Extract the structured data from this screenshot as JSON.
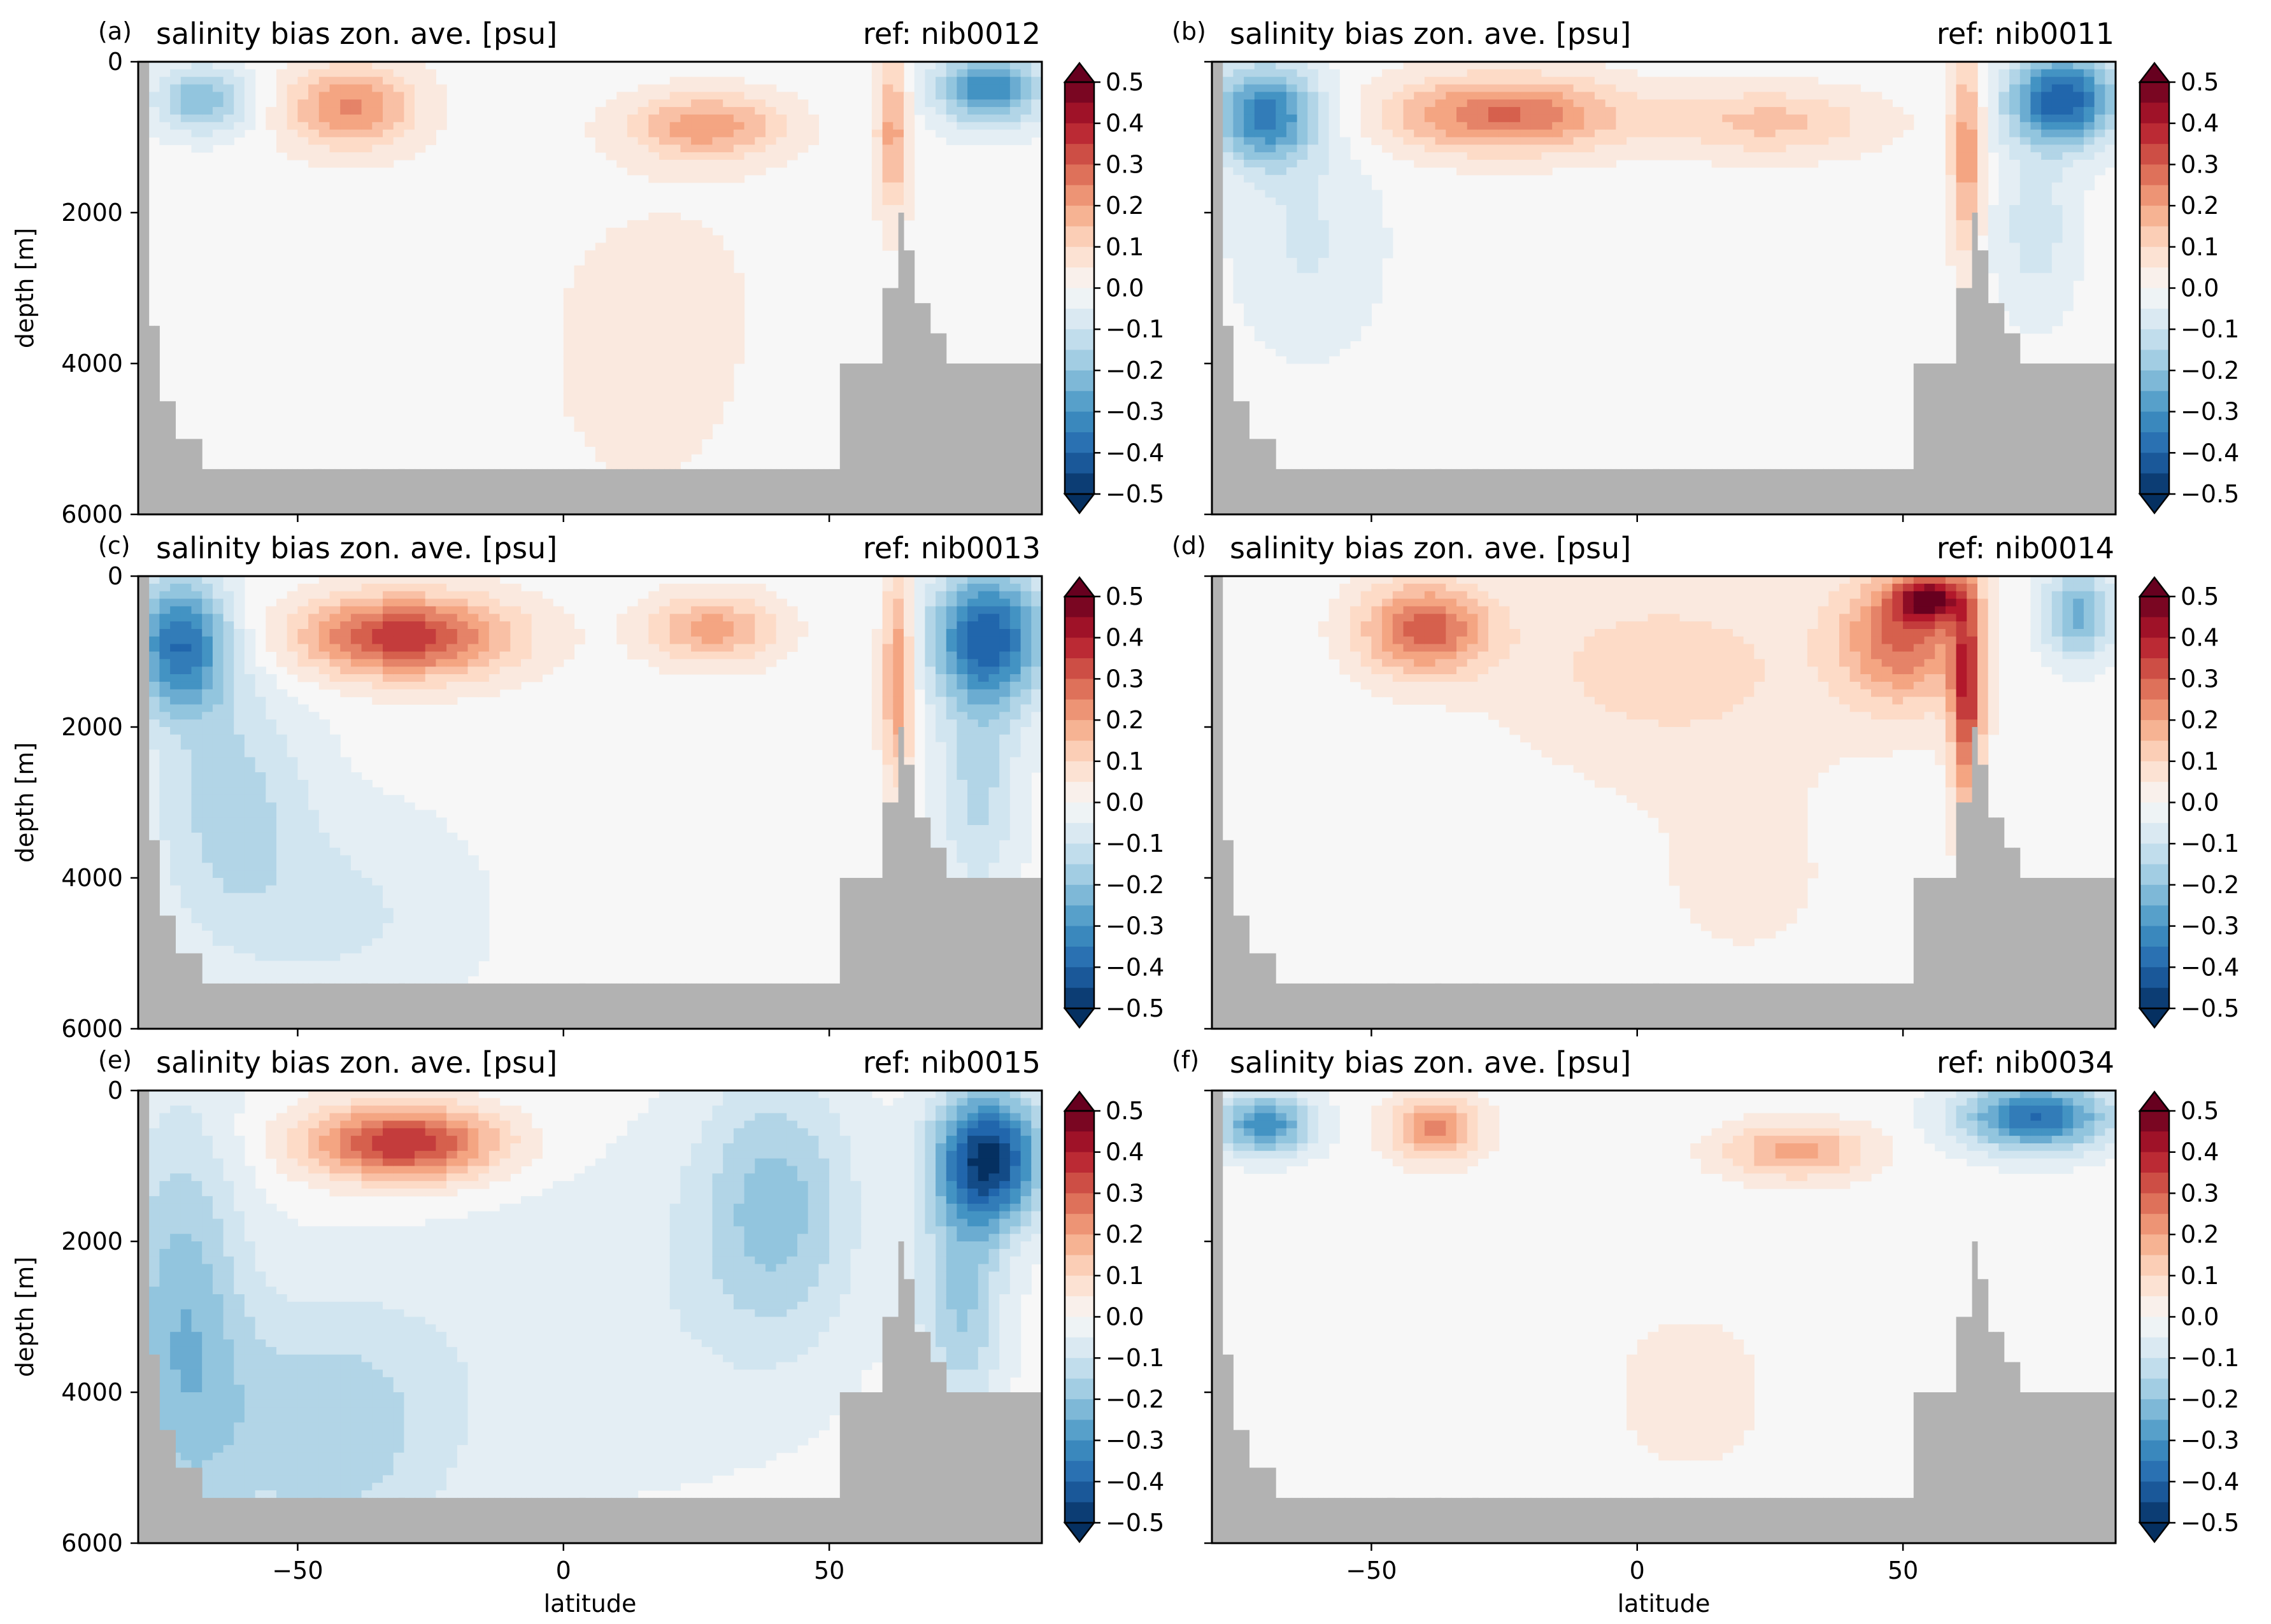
{
  "figure": {
    "colormap": {
      "name": "RdBu_r",
      "blue_dark": "#053061",
      "blue": "#2166ac",
      "blue_mid": "#4393c3",
      "blue_light": "#92c5de",
      "blue_pale": "#d1e5f0",
      "neutral": "#f7f7f7",
      "red_pale": "#fddbc7",
      "red_light": "#f4a582",
      "red_mid": "#d6604d",
      "red": "#b2182b",
      "red_dark": "#67001f",
      "land": "#b2b2b2"
    }
  },
  "chart_data": [
    {
      "panel": "(a)",
      "type": "heatmap",
      "title": "salinity bias zon. ave. [psu]",
      "ref": "ref: nib0012",
      "xlabel": "",
      "ylabel": "depth [m]",
      "xlim": [
        -80,
        90
      ],
      "ylim": [
        6000,
        0
      ],
      "xticks": [
        -50,
        0,
        50
      ],
      "xtick_labels": [
        "",
        "",
        ""
      ],
      "yticks": [
        0,
        2000,
        4000,
        6000
      ],
      "ytick_labels": [
        "0",
        "2000",
        "4000",
        "6000"
      ],
      "colorbar": {
        "vmin": -0.5,
        "vmax": 0.5,
        "step": 0.05,
        "extend": "both",
        "tick_values": [
          0.5,
          0.4,
          0.3,
          0.2,
          0.1,
          0.0,
          -0.1,
          -0.2,
          -0.3,
          -0.4,
          -0.5
        ],
        "tick_labels": [
          "0.5",
          "0.4",
          "0.3",
          "0.2",
          "0.1",
          "0.0",
          "−0.1",
          "−0.2",
          "−0.3",
          "−0.4",
          "−0.5"
        ]
      },
      "features": [
        {
          "lat": -68,
          "depth": 500,
          "bias": -0.22,
          "wlat": 9,
          "wdepth": 450
        },
        {
          "lat": -40,
          "depth": 600,
          "bias": 0.24,
          "wlat": 12,
          "wdepth": 550
        },
        {
          "lat": 27,
          "depth": 850,
          "bias": 0.21,
          "wlat": 14,
          "wdepth": 420
        },
        {
          "lat": 62,
          "depth": 900,
          "bias": 0.2,
          "wlat": 3,
          "wdepth": 1100
        },
        {
          "lat": 80,
          "depth": 350,
          "bias": -0.32,
          "wlat": 10,
          "wdepth": 500
        },
        {
          "lat": 15,
          "depth": 4500,
          "bias": 0.03,
          "wlat": 25,
          "wdepth": 2000
        },
        {
          "lat": 20,
          "depth": 2500,
          "bias": 0.02,
          "wlat": 30,
          "wdepth": 1800
        }
      ]
    },
    {
      "panel": "(b)",
      "type": "heatmap",
      "title": "salinity bias zon. ave. [psu]",
      "ref": "ref: nib0011",
      "xlabel": "",
      "ylabel": "",
      "xlim": [
        -80,
        90
      ],
      "ylim": [
        6000,
        0
      ],
      "xticks": [
        -50,
        0,
        50
      ],
      "xtick_labels": [
        "",
        "",
        ""
      ],
      "yticks": [
        0,
        2000,
        4000,
        6000
      ],
      "ytick_labels": [
        "",
        "",
        "",
        ""
      ],
      "colorbar": {
        "vmin": -0.5,
        "vmax": 0.5,
        "step": 0.05,
        "extend": "both",
        "tick_values": [
          0.5,
          0.4,
          0.3,
          0.2,
          0.1,
          0.0,
          -0.1,
          -0.2,
          -0.3,
          -0.4,
          -0.5
        ],
        "tick_labels": [
          "0.5",
          "0.4",
          "0.3",
          "0.2",
          "0.1",
          "0.0",
          "−0.1",
          "−0.2",
          "−0.3",
          "−0.4",
          "−0.5"
        ]
      },
      "features": [
        {
          "lat": -70,
          "depth": 700,
          "bias": -0.34,
          "wlat": 10,
          "wdepth": 650
        },
        {
          "lat": -62,
          "depth": 2400,
          "bias": -0.08,
          "wlat": 14,
          "wdepth": 1500
        },
        {
          "lat": -25,
          "depth": 700,
          "bias": 0.28,
          "wlat": 22,
          "wdepth": 500
        },
        {
          "lat": 25,
          "depth": 800,
          "bias": 0.14,
          "wlat": 20,
          "wdepth": 450
        },
        {
          "lat": 62,
          "depth": 1200,
          "bias": 0.22,
          "wlat": 3,
          "wdepth": 1400
        },
        {
          "lat": 80,
          "depth": 500,
          "bias": -0.42,
          "wlat": 10,
          "wdepth": 600
        },
        {
          "lat": 75,
          "depth": 2200,
          "bias": -0.1,
          "wlat": 8,
          "wdepth": 1200
        }
      ]
    },
    {
      "panel": "(c)",
      "type": "heatmap",
      "title": "salinity bias zon. ave. [psu]",
      "ref": "ref: nib0013",
      "xlabel": "",
      "ylabel": "depth [m]",
      "xlim": [
        -80,
        90
      ],
      "ylim": [
        6000,
        0
      ],
      "xticks": [
        -50,
        0,
        50
      ],
      "xtick_labels": [
        "",
        "",
        ""
      ],
      "yticks": [
        0,
        2000,
        4000,
        6000
      ],
      "ytick_labels": [
        "0",
        "2000",
        "4000",
        "6000"
      ],
      "colorbar": {
        "vmin": -0.5,
        "vmax": 0.5,
        "step": 0.05,
        "extend": "both",
        "tick_values": [
          0.5,
          0.4,
          0.3,
          0.2,
          0.1,
          0.0,
          -0.1,
          -0.2,
          -0.3,
          -0.4,
          -0.5
        ],
        "tick_labels": [
          "0.5",
          "0.4",
          "0.3",
          "0.2",
          "0.1",
          "0.0",
          "−0.1",
          "−0.2",
          "−0.3",
          "−0.4",
          "−0.5"
        ]
      },
      "features": [
        {
          "lat": -72,
          "depth": 900,
          "bias": -0.36,
          "wlat": 9,
          "wdepth": 900
        },
        {
          "lat": -63,
          "depth": 3000,
          "bias": -0.14,
          "wlat": 15,
          "wdepth": 1800
        },
        {
          "lat": -30,
          "depth": 800,
          "bias": 0.36,
          "wlat": 20,
          "wdepth": 550
        },
        {
          "lat": 28,
          "depth": 700,
          "bias": 0.2,
          "wlat": 12,
          "wdepth": 450
        },
        {
          "lat": 63,
          "depth": 1300,
          "bias": 0.25,
          "wlat": 3,
          "wdepth": 1400
        },
        {
          "lat": 80,
          "depth": 800,
          "bias": -0.4,
          "wlat": 11,
          "wdepth": 900
        },
        {
          "lat": 78,
          "depth": 2800,
          "bias": -0.14,
          "wlat": 8,
          "wdepth": 1500
        },
        {
          "lat": -40,
          "depth": 4500,
          "bias": -0.08,
          "wlat": 25,
          "wdepth": 1500
        }
      ]
    },
    {
      "panel": "(d)",
      "type": "heatmap",
      "title": "salinity bias zon. ave. [psu]",
      "ref": "ref: nib0014",
      "xlabel": "",
      "ylabel": "",
      "xlim": [
        -80,
        90
      ],
      "ylim": [
        6000,
        0
      ],
      "xticks": [
        -50,
        0,
        50
      ],
      "xtick_labels": [
        "",
        "",
        ""
      ],
      "yticks": [
        0,
        2000,
        4000,
        6000
      ],
      "ytick_labels": [
        "",
        "",
        "",
        ""
      ],
      "colorbar": {
        "vmin": -0.5,
        "vmax": 0.5,
        "step": 0.05,
        "extend": "both",
        "tick_values": [
          0.5,
          0.4,
          0.3,
          0.2,
          0.1,
          0.0,
          -0.1,
          -0.2,
          -0.3,
          -0.4,
          -0.5
        ],
        "tick_labels": [
          "0.5",
          "0.4",
          "0.3",
          "0.2",
          "0.1",
          "0.0",
          "−0.1",
          "−0.2",
          "−0.3",
          "−0.4",
          "−0.5"
        ]
      },
      "features": [
        {
          "lat": -40,
          "depth": 700,
          "bias": 0.3,
          "wlat": 12,
          "wdepth": 600
        },
        {
          "lat": 5,
          "depth": 1200,
          "bias": 0.1,
          "wlat": 30,
          "wdepth": 1200
        },
        {
          "lat": 50,
          "depth": 800,
          "bias": 0.28,
          "wlat": 12,
          "wdepth": 900
        },
        {
          "lat": 62,
          "depth": 1600,
          "bias": 0.35,
          "wlat": 3,
          "wdepth": 1500
        },
        {
          "lat": 55,
          "depth": 300,
          "bias": 0.38,
          "wlat": 6,
          "wdepth": 300
        },
        {
          "lat": 83,
          "depth": 500,
          "bias": -0.24,
          "wlat": 7,
          "wdepth": 600
        },
        {
          "lat": 20,
          "depth": 4000,
          "bias": 0.03,
          "wlat": 30,
          "wdepth": 2000
        }
      ]
    },
    {
      "panel": "(e)",
      "type": "heatmap",
      "title": "salinity bias zon. ave. [psu]",
      "ref": "ref: nib0015",
      "xlabel": "latitude",
      "ylabel": "depth [m]",
      "xlim": [
        -80,
        90
      ],
      "ylim": [
        6000,
        0
      ],
      "xticks": [
        -50,
        0,
        50
      ],
      "xtick_labels": [
        "−50",
        "0",
        "50"
      ],
      "yticks": [
        0,
        2000,
        4000,
        6000
      ],
      "ytick_labels": [
        "0",
        "2000",
        "4000",
        "6000"
      ],
      "colorbar": {
        "vmin": -0.5,
        "vmax": 0.5,
        "step": 0.05,
        "extend": "both",
        "tick_values": [
          0.5,
          0.4,
          0.3,
          0.2,
          0.1,
          0.0,
          -0.1,
          -0.2,
          -0.3,
          -0.4,
          -0.5
        ],
        "tick_labels": [
          "0.5",
          "0.4",
          "0.3",
          "0.2",
          "0.1",
          "0.0",
          "−0.1",
          "−0.2",
          "−0.3",
          "−0.4",
          "−0.5"
        ]
      },
      "features": [
        {
          "lat": -72,
          "depth": 3000,
          "bias": -0.2,
          "wlat": 12,
          "wdepth": 2800
        },
        {
          "lat": -45,
          "depth": 4500,
          "bias": -0.16,
          "wlat": 25,
          "wdepth": 1800
        },
        {
          "lat": -30,
          "depth": 700,
          "bias": 0.38,
          "wlat": 18,
          "wdepth": 500
        },
        {
          "lat": 40,
          "depth": 1500,
          "bias": -0.18,
          "wlat": 15,
          "wdepth": 1800
        },
        {
          "lat": 80,
          "depth": 900,
          "bias": -0.48,
          "wlat": 10,
          "wdepth": 900
        },
        {
          "lat": 75,
          "depth": 2800,
          "bias": -0.18,
          "wlat": 8,
          "wdepth": 1500
        },
        {
          "lat": 10,
          "depth": 3000,
          "bias": -0.06,
          "wlat": 40,
          "wdepth": 2500
        }
      ]
    },
    {
      "panel": "(f)",
      "type": "heatmap",
      "title": "salinity bias zon. ave. [psu]",
      "ref": "ref: nib0034",
      "xlabel": "latitude",
      "ylabel": "",
      "xlim": [
        -80,
        90
      ],
      "ylim": [
        6000,
        0
      ],
      "xticks": [
        -50,
        0,
        50
      ],
      "xtick_labels": [
        "−50",
        "0",
        "50"
      ],
      "yticks": [
        0,
        2000,
        4000,
        6000
      ],
      "ytick_labels": [
        "",
        "",
        "",
        ""
      ],
      "colorbar": {
        "vmin": -0.5,
        "vmax": 0.5,
        "step": 0.05,
        "extend": "both",
        "tick_values": [
          0.5,
          0.4,
          0.3,
          0.2,
          0.1,
          0.0,
          -0.1,
          -0.2,
          -0.3,
          -0.4,
          -0.5
        ],
        "tick_labels": [
          "0.5",
          "0.4",
          "0.3",
          "0.2",
          "0.1",
          "0.0",
          "−0.1",
          "−0.2",
          "−0.3",
          "−0.4",
          "−0.5"
        ]
      },
      "features": [
        {
          "lat": -70,
          "depth": 450,
          "bias": -0.32,
          "wlat": 9,
          "wdepth": 400
        },
        {
          "lat": -38,
          "depth": 500,
          "bias": 0.26,
          "wlat": 8,
          "wdepth": 400
        },
        {
          "lat": 30,
          "depth": 800,
          "bias": 0.2,
          "wlat": 13,
          "wdepth": 350
        },
        {
          "lat": 75,
          "depth": 350,
          "bias": -0.38,
          "wlat": 14,
          "wdepth": 450
        },
        {
          "lat": 10,
          "depth": 4000,
          "bias": 0.03,
          "wlat": 30,
          "wdepth": 2200
        }
      ]
    }
  ]
}
